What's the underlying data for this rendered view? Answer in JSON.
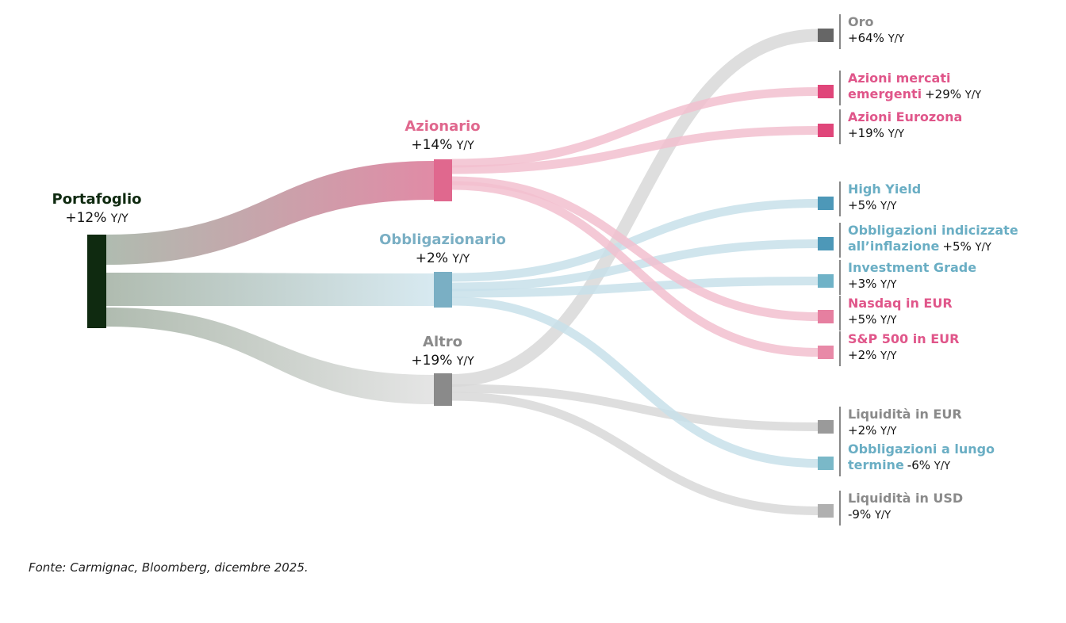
{
  "colors": {
    "portfolio": "#0f2a10",
    "azionario": "#e0688e",
    "obbligazionario": "#7aafc4",
    "altro": "#8a8a8a",
    "azionario_flow": "#f2c0cf",
    "obbligazionario_flow": "#c8e0ea",
    "altro_flow": "#d8d8d8"
  },
  "unit": "Y/Y",
  "nodes": {
    "root": {
      "name": "Portafoglio",
      "value": "+12%"
    },
    "mid": [
      {
        "key": "azionario",
        "name": "Azionario",
        "value": "+14%"
      },
      {
        "key": "obbligazionario",
        "name": "Obbligazionario",
        "value": "+2%"
      },
      {
        "key": "altro",
        "name": "Altro",
        "value": "+19%"
      }
    ],
    "leaves": [
      {
        "key": "oro",
        "name_lines": [
          "Oro"
        ],
        "value": "+64%",
        "group": "altro",
        "color": "#666666"
      },
      {
        "key": "azioni-emergenti",
        "name_lines": [
          "Azioni mercati",
          "emergenti"
        ],
        "value": "+29%",
        "group": "azionario",
        "color": "#e0467a"
      },
      {
        "key": "azioni-eurozona",
        "name_lines": [
          "Azioni Eurozona"
        ],
        "value": "+19%",
        "group": "azionario",
        "color": "#e0467a"
      },
      {
        "key": "high-yield",
        "name_lines": [
          "High Yield"
        ],
        "value": "+5%",
        "group": "obbligazionario",
        "color": "#4d98b8"
      },
      {
        "key": "obbligazioni-inflazione",
        "name_lines": [
          "Obbligazioni indicizzate",
          "all’inflazione"
        ],
        "value": "+5%",
        "group": "obbligazionario",
        "color": "#4d98b8"
      },
      {
        "key": "investment-grade",
        "name_lines": [
          "Investment Grade"
        ],
        "value": "+3%",
        "group": "obbligazionario",
        "color": "#6fb2c7"
      },
      {
        "key": "nasdaq-eur",
        "name_lines": [
          "Nasdaq in EUR"
        ],
        "value": "+5%",
        "group": "azionario",
        "color": "#e67fa0"
      },
      {
        "key": "sp500-eur",
        "name_lines": [
          "S&P 500 in EUR"
        ],
        "value": "+2%",
        "group": "azionario",
        "color": "#e889a7"
      },
      {
        "key": "liquidita-eur",
        "name_lines": [
          "Liquidità in EUR"
        ],
        "value": "+2%",
        "group": "altro",
        "color": "#9a9a9a"
      },
      {
        "key": "obbligazioni-lungo",
        "name_lines": [
          "Obbligazioni a lungo",
          "termine"
        ],
        "value": "-6%",
        "group": "obbligazionario",
        "color": "#7ab8c8"
      },
      {
        "key": "liquidita-usd",
        "name_lines": [
          "Liquidità in USD"
        ],
        "value": "-9%",
        "group": "altro",
        "color": "#b0b0b0"
      }
    ]
  },
  "source": "Fonte: Carmignac, Bloomberg, dicembre 2025."
}
